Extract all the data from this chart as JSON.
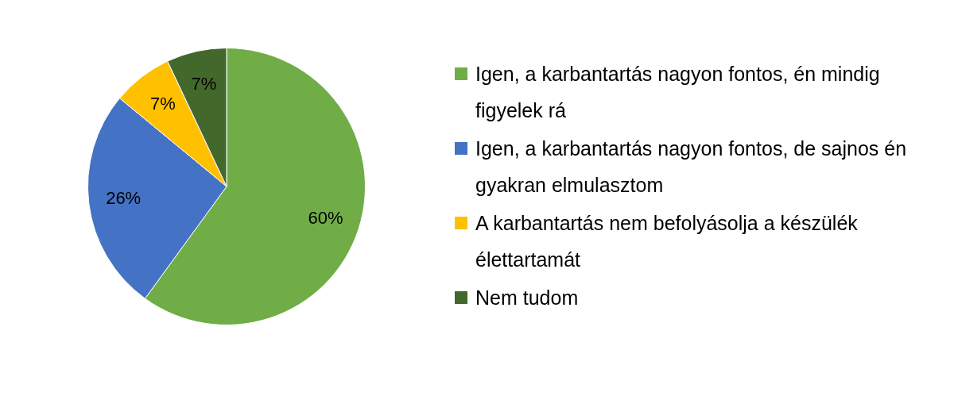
{
  "chart_data": {
    "type": "pie",
    "categories": [
      "Igen, a karbantartás nagyon fontos, én mindig figyelek rá",
      "Igen, a karbantartás nagyon fontos, de sajnos én gyakran elmulasztom",
      "A karbantartás nem befolyásolja a készülék élettartamát",
      "Nem tudom"
    ],
    "values": [
      60,
      26,
      7,
      7
    ],
    "colors": [
      "#70ad47",
      "#4472c4",
      "#ffc000",
      "#43682b"
    ],
    "value_labels": [
      "60%",
      "26%",
      "7%",
      "7%"
    ],
    "legend": "right"
  }
}
